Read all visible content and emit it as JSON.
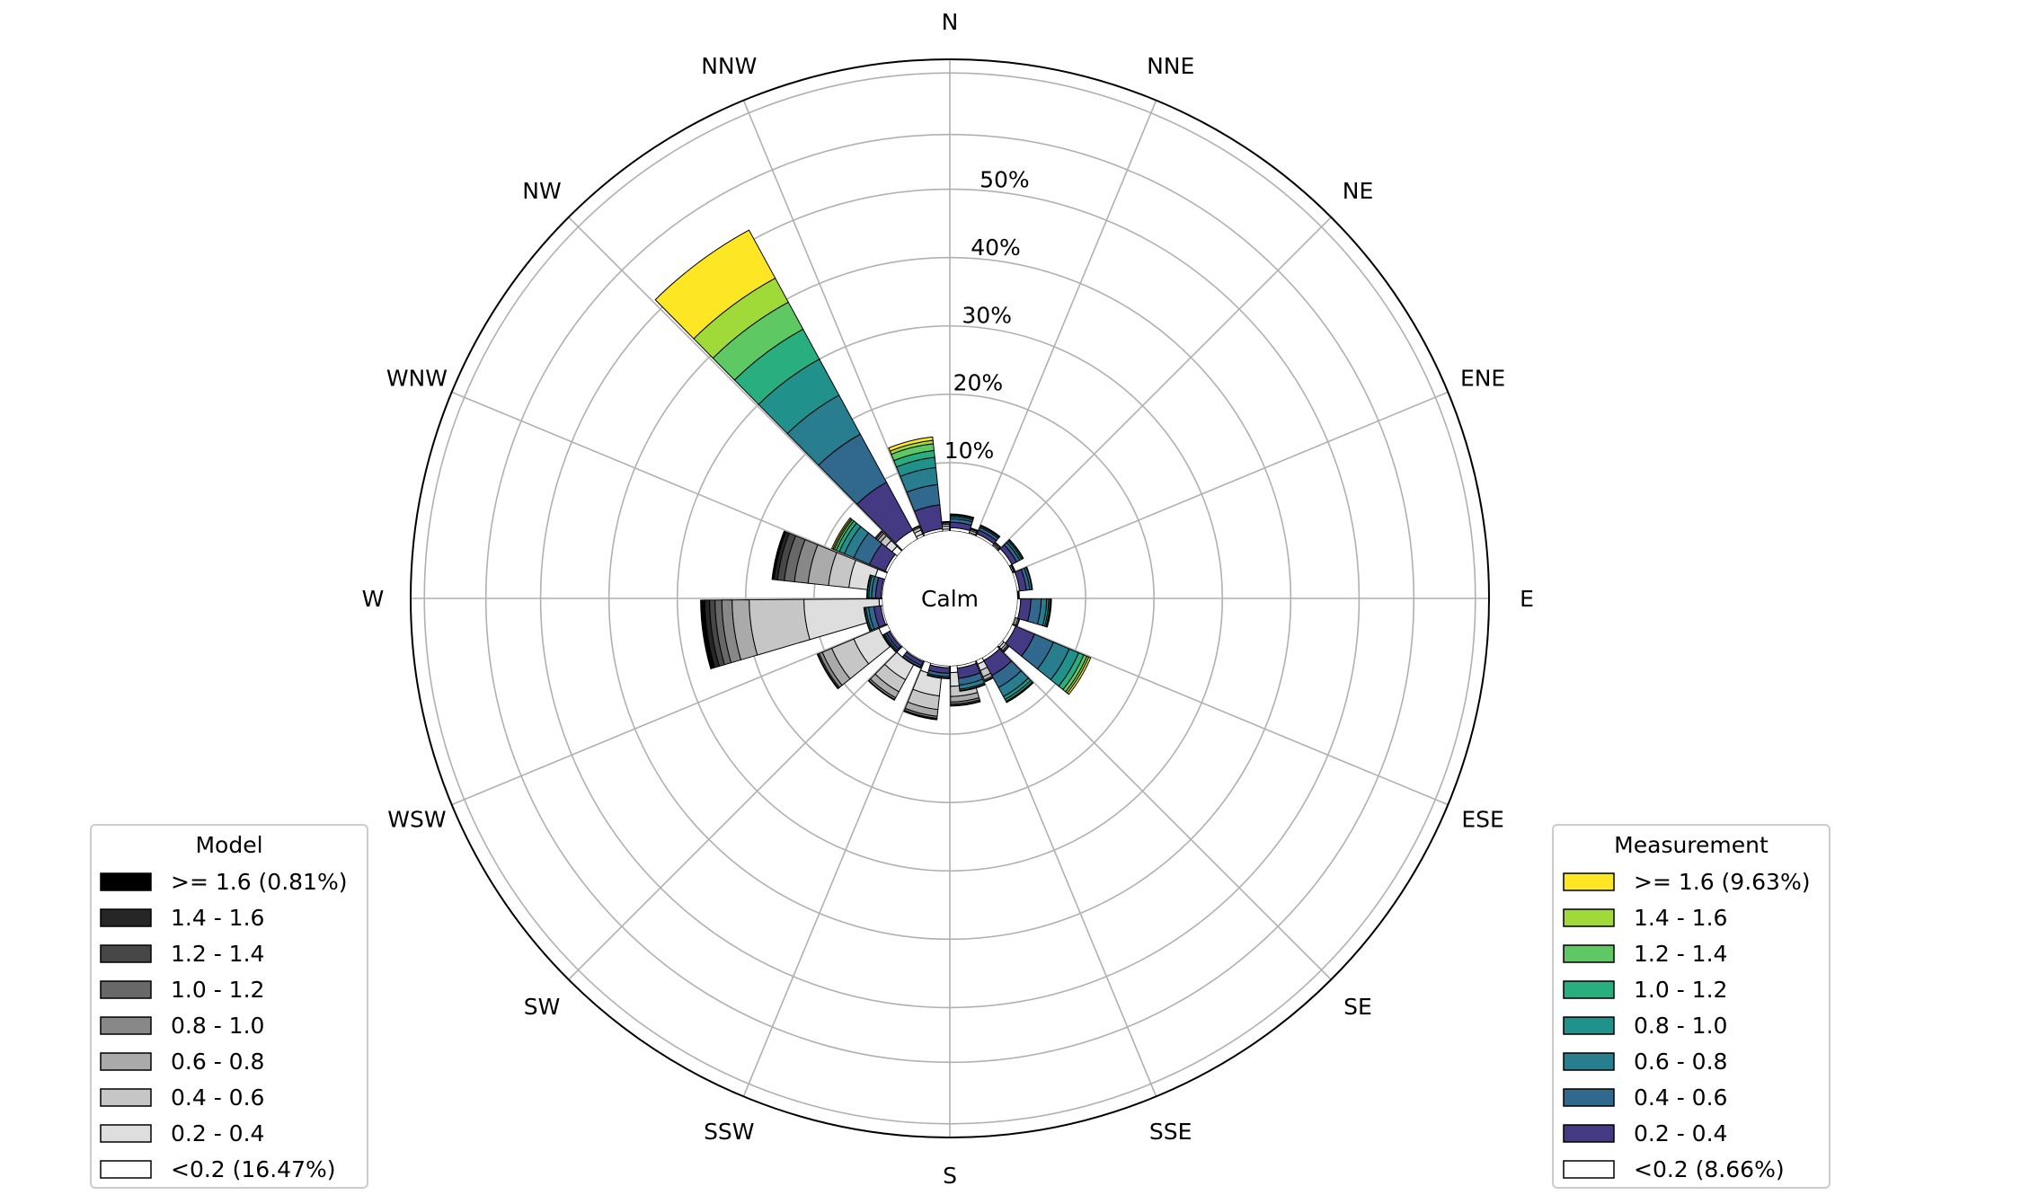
{
  "chart_data": {
    "type": "windrose",
    "calm_label": "Calm",
    "directions": [
      "N",
      "NNE",
      "NE",
      "ENE",
      "E",
      "ESE",
      "SE",
      "SSE",
      "S",
      "SSW",
      "SW",
      "WSW",
      "W",
      "WNW",
      "NW",
      "NNW"
    ],
    "radial_ticks": [
      10,
      20,
      30,
      40,
      50
    ],
    "radial_tick_labels": [
      "10%",
      "20%",
      "30%",
      "40%",
      "50%"
    ],
    "rmax": 69,
    "grid": true,
    "bins": [
      "<0.2",
      "0.2 - 0.4",
      "0.4 - 0.6",
      "0.6 - 0.8",
      "0.8 - 1.0",
      "1.0 - 1.2",
      "1.2 - 1.4",
      "1.4 - 1.6",
      ">= 1.6"
    ],
    "series": [
      {
        "legend_title": "Model",
        "legend_position": "bottom-left",
        "legend_labels": [
          "<0.2 (16.47%)",
          "0.2 - 0.4",
          "0.4 - 0.6",
          "0.6 - 0.8",
          "0.8 - 1.0",
          "1.0 - 1.2",
          "1.2 - 1.4",
          "1.4 - 1.6",
          ">= 1.6 (0.81%)"
        ],
        "colors": [
          "#ffffff",
          "#dedede",
          "#c6c6c6",
          "#aaaaaa",
          "#888888",
          "#686868",
          "#474747",
          "#262626",
          "#000000"
        ],
        "values": {
          "N": [
            0.3,
            0.4,
            0.3,
            0.2,
            0.1,
            0.1,
            0.0,
            0.0,
            0.0
          ],
          "NNE": [
            0.2,
            0.3,
            0.2,
            0.1,
            0.1,
            0.0,
            0.0,
            0.0,
            0.0
          ],
          "NE": [
            0.2,
            0.2,
            0.2,
            0.1,
            0.0,
            0.0,
            0.0,
            0.0,
            0.0
          ],
          "ENE": [
            0.1,
            0.2,
            0.1,
            0.1,
            0.0,
            0.0,
            0.0,
            0.0,
            0.0
          ],
          "E": [
            0.1,
            0.1,
            0.1,
            0.0,
            0.0,
            0.0,
            0.0,
            0.0,
            0.0
          ],
          "ESE": [
            0.2,
            0.3,
            0.2,
            0.1,
            0.0,
            0.0,
            0.0,
            0.0,
            0.0
          ],
          "SE": [
            0.3,
            0.4,
            0.3,
            0.2,
            0.1,
            0.0,
            0.0,
            0.0,
            0.0
          ],
          "SSE": [
            0.6,
            1.0,
            1.0,
            0.5,
            0.2,
            0.1,
            0.0,
            0.0,
            0.0
          ],
          "S": [
            1.0,
            2.0,
            1.5,
            0.8,
            0.3,
            0.2,
            0.1,
            0.0,
            0.0
          ],
          "SSW": [
            1.5,
            3.0,
            2.0,
            1.0,
            0.3,
            0.1,
            0.1,
            0.0,
            0.0
          ],
          "SW": [
            1.2,
            2.5,
            2.0,
            1.0,
            0.3,
            0.1,
            0.0,
            0.0,
            0.0
          ],
          "WSW": [
            1.4,
            4.0,
            3.5,
            1.5,
            0.5,
            0.2,
            0.1,
            0.0,
            0.0
          ],
          "W": [
            0.5,
            11.0,
            8.0,
            2.5,
            1.5,
            1.0,
            0.8,
            0.7,
            0.6
          ],
          "WNW": [
            1.5,
            3.5,
            3.0,
            3.0,
            2.0,
            1.5,
            1.0,
            0.5,
            0.3
          ],
          "NW": [
            1.0,
            1.2,
            1.0,
            0.5,
            0.3,
            0.2,
            0.0,
            0.0,
            0.0
          ],
          "NNW": [
            0.4,
            0.6,
            0.4,
            0.2,
            0.1,
            0.0,
            0.0,
            0.0,
            0.0
          ]
        }
      },
      {
        "legend_title": "Measurement",
        "legend_position": "bottom-right",
        "legend_labels": [
          "<0.2 (8.66%)",
          "0.2 - 0.4",
          "0.4 - 0.6",
          "0.6 - 0.8",
          "0.8 - 1.0",
          "1.0 - 1.2",
          "1.2 - 1.4",
          "1.4 - 1.6",
          ">= 1.6 (9.63%)"
        ],
        "colors": [
          "#ffffff",
          "#443983",
          "#31688e",
          "#287d8e",
          "#21918c",
          "#29af7f",
          "#5ec962",
          "#a0da39",
          "#fde725"
        ],
        "values": {
          "N": [
            0.5,
            0.8,
            0.5,
            0.3,
            0.2,
            0.1,
            0.1,
            0.0,
            0.0
          ],
          "NNE": [
            0.4,
            0.6,
            0.4,
            0.2,
            0.1,
            0.1,
            0.0,
            0.0,
            0.0
          ],
          "NE": [
            0.5,
            0.8,
            0.5,
            0.3,
            0.2,
            0.1,
            0.0,
            0.0,
            0.0
          ],
          "ENE": [
            0.4,
            1.0,
            0.5,
            0.3,
            0.1,
            0.0,
            0.0,
            0.0,
            0.0
          ],
          "E": [
            0.5,
            1.5,
            1.5,
            0.8,
            0.3,
            0.2,
            0.1,
            0.1,
            0.0
          ],
          "ESE": [
            0.6,
            3.0,
            3.0,
            2.5,
            1.5,
            0.8,
            0.5,
            0.3,
            0.3
          ],
          "SE": [
            0.5,
            2.5,
            2.0,
            1.5,
            0.5,
            0.3,
            0.1,
            0.1,
            0.0
          ],
          "SSE": [
            0.4,
            1.5,
            1.0,
            0.6,
            0.2,
            0.1,
            0.0,
            0.0,
            0.0
          ],
          "S": [
            0.3,
            0.8,
            0.5,
            0.2,
            0.1,
            0.0,
            0.0,
            0.0,
            0.0
          ],
          "SSW": [
            0.2,
            0.6,
            0.3,
            0.1,
            0.0,
            0.0,
            0.0,
            0.0,
            0.0
          ],
          "SW": [
            0.2,
            0.5,
            0.3,
            0.2,
            0.1,
            0.0,
            0.0,
            0.0,
            0.0
          ],
          "WSW": [
            0.3,
            1.0,
            0.8,
            0.4,
            0.2,
            0.1,
            0.0,
            0.0,
            0.0
          ],
          "W": [
            0.2,
            0.8,
            0.6,
            0.4,
            0.2,
            0.1,
            0.0,
            0.0,
            0.0
          ],
          "WNW": [
            0.4,
            2.5,
            2.5,
            1.5,
            0.8,
            0.5,
            0.3,
            0.2,
            0.2
          ],
          "NW": [
            1.5,
            8.0,
            8.0,
            6.5,
            6.0,
            5.0,
            4.5,
            4.0,
            8.0
          ],
          "NNW": [
            0.4,
            3.5,
            3.0,
            2.5,
            1.5,
            1.0,
            1.0,
            0.5,
            0.5
          ]
        }
      }
    ]
  }
}
